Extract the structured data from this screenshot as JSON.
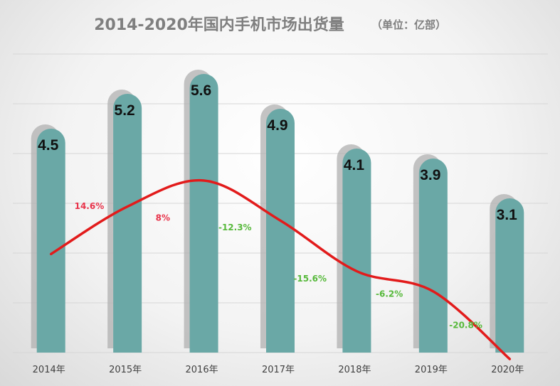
{
  "chart_data": {
    "type": "bar",
    "title": "2014-2020年国内手机市场出货量",
    "unit_note": "（单位：亿部）",
    "categories": [
      "2014年",
      "2015年",
      "2016年",
      "2017年",
      "2018年",
      "2019年",
      "2020年"
    ],
    "values": [
      4.5,
      5.2,
      5.6,
      4.9,
      4.1,
      3.9,
      3.1
    ],
    "value_labels": [
      "4.5",
      "5.2",
      "5.6",
      "4.9",
      "4.1",
      "3.9",
      "3.1"
    ],
    "growth_line": {
      "values": [
        14.6,
        8,
        -12.3,
        -15.6,
        -6.2,
        -20.8
      ],
      "labels": [
        "14.6%",
        "8%",
        "-12.3%",
        "-15.6%",
        "-6.2%",
        "-20.8%"
      ]
    },
    "ylim": [
      0,
      6
    ],
    "grid": true,
    "colors": {
      "bar": "#6aa8a6",
      "bar_shadow": "#b0b0b0",
      "line": "#e21b1b",
      "positive_label": "#e8334a",
      "negative_label": "#57b93b",
      "gridline": "#d6d6d6"
    }
  }
}
